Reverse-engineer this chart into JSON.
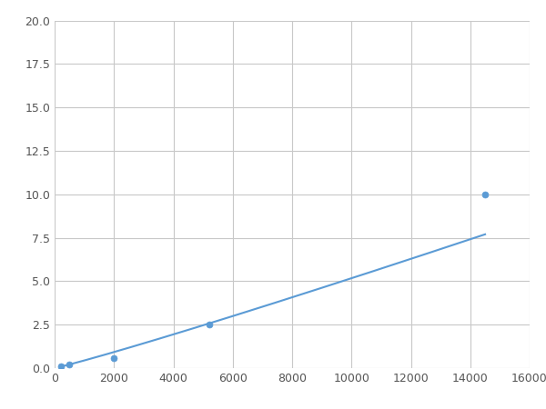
{
  "x": [
    200,
    500,
    2000,
    5200,
    14500
  ],
  "y": [
    0.1,
    0.2,
    0.6,
    2.5,
    10.0
  ],
  "line_color": "#5b9bd5",
  "marker_color": "#5b9bd5",
  "marker_size": 5,
  "xlim": [
    0,
    16000
  ],
  "ylim": [
    0,
    20.0
  ],
  "xticks": [
    0,
    2000,
    4000,
    6000,
    8000,
    10000,
    12000,
    14000,
    16000
  ],
  "yticks": [
    0.0,
    2.5,
    5.0,
    7.5,
    10.0,
    12.5,
    15.0,
    17.5,
    20.0
  ],
  "grid_color": "#c8c8c8",
  "background_color": "#ffffff",
  "figsize": [
    6.0,
    4.5
  ],
  "dpi": 100
}
